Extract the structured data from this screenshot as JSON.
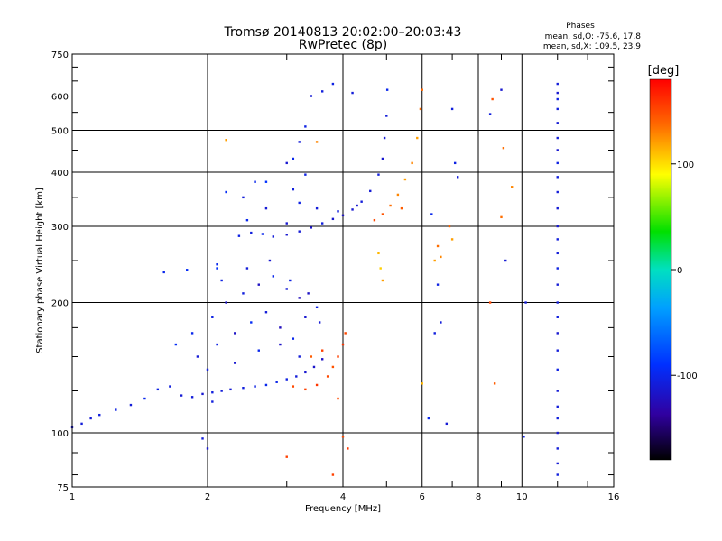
{
  "chart_data": {
    "type": "scatter",
    "title": "Tromsø 20140813 20:02:00–20:03:43",
    "subtitle": "RwPretec (8p)",
    "xlabel": "Frequency [MHz]",
    "ylabel": "Stationary phase Virtual Height [km]",
    "x_scale": "log",
    "y_scale": "log",
    "xlim": [
      1,
      16
    ],
    "ylim": [
      75,
      750
    ],
    "x_ticks": [
      1,
      2,
      4,
      6,
      8,
      10,
      16
    ],
    "x_tick_labels": [
      "1",
      "2",
      "4",
      "6",
      "8",
      "10",
      "16"
    ],
    "y_ticks": [
      75,
      100,
      200,
      300,
      400,
      500,
      600,
      750
    ],
    "y_tick_labels": [
      "75",
      "100",
      "200",
      "300",
      "400",
      "500",
      "600",
      "750"
    ],
    "grid": true,
    "stats": {
      "heading": "Phases",
      "line_o": "mean, sd,O: -75.6, 17.8",
      "line_x": "mean, sd,X: 109.5, 23.9"
    },
    "colorbar": {
      "label": "[deg]",
      "range": [
        -180,
        180
      ],
      "ticks": [
        100,
        0,
        -100
      ],
      "tick_labels": [
        "100",
        "0",
        "-100"
      ],
      "colormap": "rainbow"
    },
    "series": [
      {
        "points": [
          [
            1.0,
            103,
            -115
          ],
          [
            1.05,
            105,
            -110
          ],
          [
            1.1,
            108,
            -112
          ],
          [
            1.15,
            110,
            -108
          ],
          [
            1.25,
            113,
            -105
          ],
          [
            1.35,
            116,
            -110
          ],
          [
            1.45,
            120,
            -100
          ],
          [
            1.55,
            126,
            -105
          ],
          [
            1.65,
            128,
            -108
          ],
          [
            1.75,
            122,
            -112
          ],
          [
            1.85,
            121,
            -110
          ],
          [
            1.95,
            123,
            -115
          ],
          [
            2.05,
            124,
            -108
          ],
          [
            2.15,
            125,
            -110
          ],
          [
            2.25,
            126,
            -112
          ],
          [
            2.4,
            127,
            -108
          ],
          [
            2.55,
            128,
            -105
          ],
          [
            2.7,
            129,
            -100
          ],
          [
            2.85,
            131,
            -102
          ],
          [
            3.0,
            133,
            -106
          ],
          [
            3.15,
            135,
            -110
          ],
          [
            3.3,
            138,
            -115
          ],
          [
            3.45,
            142,
            -118
          ],
          [
            3.6,
            148,
            -120
          ],
          [
            1.9,
            150,
            -112
          ],
          [
            2.1,
            160,
            -105
          ],
          [
            2.3,
            170,
            -120
          ],
          [
            2.5,
            180,
            -95
          ],
          [
            2.7,
            190,
            -110
          ],
          [
            2.9,
            175,
            -125
          ],
          [
            3.1,
            165,
            -100
          ],
          [
            3.3,
            185,
            -115
          ],
          [
            3.5,
            195,
            -105
          ],
          [
            2.2,
            200,
            -118
          ],
          [
            2.4,
            210,
            -108
          ],
          [
            2.6,
            220,
            -122
          ],
          [
            2.8,
            230,
            -100
          ],
          [
            3.0,
            215,
            -112
          ],
          [
            3.2,
            205,
            -125
          ],
          [
            2.0,
            140,
            -108
          ],
          [
            2.3,
            145,
            -115
          ],
          [
            2.6,
            155,
            -100
          ],
          [
            2.9,
            160,
            -120
          ],
          [
            3.2,
            150,
            -110
          ],
          [
            1.7,
            160,
            -95
          ],
          [
            1.85,
            170,
            -100
          ],
          [
            2.05,
            185,
            -105
          ],
          [
            2.45,
            240,
            -110
          ],
          [
            2.75,
            250,
            -115
          ],
          [
            3.05,
            225,
            -105
          ],
          [
            3.35,
            210,
            -120
          ],
          [
            3.55,
            180,
            -112
          ],
          [
            1.6,
            235,
            -100
          ],
          [
            1.8,
            238,
            -95
          ],
          [
            2.1,
            245,
            -100
          ],
          [
            2.35,
            285,
            -105
          ],
          [
            2.5,
            290,
            -108
          ],
          [
            2.65,
            288,
            -100
          ],
          [
            2.8,
            284,
            -110
          ],
          [
            3.0,
            287,
            -115
          ],
          [
            3.2,
            292,
            -112
          ],
          [
            3.4,
            298,
            -118
          ],
          [
            3.6,
            305,
            -108
          ],
          [
            3.8,
            312,
            -115
          ],
          [
            4.0,
            318,
            -120
          ],
          [
            4.2,
            328,
            -115
          ],
          [
            4.4,
            342,
            -110
          ],
          [
            4.6,
            362,
            -112
          ],
          [
            4.8,
            395,
            -108
          ],
          [
            4.9,
            430,
            -115
          ],
          [
            4.95,
            480,
            -112
          ],
          [
            5.0,
            540,
            -110
          ],
          [
            5.02,
            620,
            -100
          ],
          [
            2.45,
            310,
            -100
          ],
          [
            2.7,
            330,
            -112
          ],
          [
            3.2,
            340,
            -105
          ],
          [
            3.5,
            330,
            -110
          ],
          [
            3.9,
            325,
            -108
          ],
          [
            4.3,
            335,
            -115
          ],
          [
            3.1,
            430,
            -100
          ],
          [
            3.2,
            470,
            -110
          ],
          [
            3.3,
            510,
            -105
          ],
          [
            3.0,
            420,
            -115
          ],
          [
            3.6,
            615,
            -108
          ],
          [
            3.4,
            600,
            -112
          ],
          [
            3.8,
            640,
            -105
          ],
          [
            4.2,
            610,
            -110
          ],
          [
            2.7,
            380,
            -90
          ],
          [
            2.55,
            380,
            -100
          ],
          [
            3.1,
            365,
            -108
          ],
          [
            3.3,
            395,
            -105
          ],
          [
            3.0,
            305,
            -115
          ],
          [
            2.2,
            360,
            -95
          ],
          [
            2.4,
            350,
            -110
          ],
          [
            2.1,
            240,
            -92
          ],
          [
            2.15,
            225,
            -105
          ],
          [
            3.1,
            128,
            140
          ],
          [
            3.3,
            126,
            145
          ],
          [
            3.5,
            129,
            150
          ],
          [
            3.7,
            135,
            140
          ],
          [
            3.8,
            142,
            135
          ],
          [
            3.9,
            150,
            145
          ],
          [
            4.0,
            160,
            150
          ],
          [
            4.05,
            170,
            140
          ],
          [
            3.6,
            155,
            145
          ],
          [
            3.4,
            150,
            130
          ],
          [
            5.1,
            335,
            120
          ],
          [
            5.3,
            355,
            115
          ],
          [
            5.5,
            385,
            110
          ],
          [
            5.7,
            420,
            115
          ],
          [
            5.85,
            480,
            110
          ],
          [
            5.95,
            560,
            120
          ],
          [
            6.0,
            620,
            125
          ],
          [
            4.9,
            320,
            135
          ],
          [
            4.7,
            310,
            140
          ],
          [
            5.4,
            330,
            130
          ],
          [
            4.8,
            260,
            105
          ],
          [
            4.85,
            240,
            100
          ],
          [
            4.9,
            225,
            110
          ],
          [
            6.5,
            270,
            120
          ],
          [
            6.6,
            255,
            115
          ],
          [
            6.9,
            300,
            125
          ],
          [
            7.0,
            280,
            110
          ],
          [
            3.0,
            88,
            145
          ],
          [
            4.0,
            98,
            140
          ],
          [
            4.1,
            92,
            150
          ],
          [
            3.5,
            470,
            115
          ],
          [
            2.2,
            475,
            110
          ],
          [
            9.0,
            315,
            120
          ],
          [
            9.5,
            370,
            115
          ],
          [
            8.5,
            200,
            140
          ],
          [
            8.7,
            130,
            130
          ],
          [
            8.6,
            590,
            135
          ],
          [
            9.1,
            455,
            120
          ],
          [
            6.0,
            130,
            105
          ],
          [
            6.4,
            250,
            110
          ],
          [
            6.3,
            320,
            -100
          ],
          [
            6.5,
            220,
            -105
          ],
          [
            6.6,
            180,
            -110
          ],
          [
            6.8,
            105,
            -112
          ],
          [
            7.0,
            560,
            -108
          ],
          [
            7.1,
            420,
            -105
          ],
          [
            7.2,
            390,
            -110
          ],
          [
            8.5,
            545,
            -108
          ],
          [
            9.0,
            620,
            -115
          ],
          [
            10.2,
            200,
            -110
          ],
          [
            10.1,
            98,
            -105
          ],
          [
            9.2,
            250,
            -112
          ],
          [
            6.2,
            108,
            -100
          ],
          [
            6.4,
            170,
            -108
          ],
          [
            12.0,
            640,
            -110
          ],
          [
            12.0,
            610,
            -115
          ],
          [
            12.0,
            590,
            -105
          ],
          [
            12.0,
            560,
            -108
          ],
          [
            12.0,
            520,
            -112
          ],
          [
            12.0,
            480,
            -110
          ],
          [
            12.0,
            450,
            -115
          ],
          [
            12.0,
            420,
            -105
          ],
          [
            12.0,
            390,
            -108
          ],
          [
            12.0,
            360,
            -110
          ],
          [
            12.0,
            330,
            -112
          ],
          [
            12.0,
            300,
            -115
          ],
          [
            12.0,
            280,
            -108
          ],
          [
            12.0,
            260,
            -110
          ],
          [
            12.0,
            240,
            -105
          ],
          [
            12.0,
            220,
            -112
          ],
          [
            12.0,
            200,
            -110
          ],
          [
            12.0,
            185,
            -108
          ],
          [
            12.0,
            170,
            -115
          ],
          [
            12.0,
            155,
            -110
          ],
          [
            12.0,
            140,
            -105
          ],
          [
            12.0,
            125,
            -112
          ],
          [
            12.0,
            115,
            -110
          ],
          [
            12.0,
            108,
            -108
          ],
          [
            12.0,
            100,
            -115
          ],
          [
            12.0,
            92,
            -110
          ],
          [
            12.0,
            85,
            -112
          ],
          [
            12.0,
            80,
            -108
          ],
          [
            2.0,
            92,
            -115
          ],
          [
            1.95,
            97,
            -110
          ],
          [
            2.05,
            118,
            -108
          ],
          [
            3.8,
            80,
            145
          ],
          [
            3.9,
            120,
            140
          ]
        ]
      }
    ]
  }
}
